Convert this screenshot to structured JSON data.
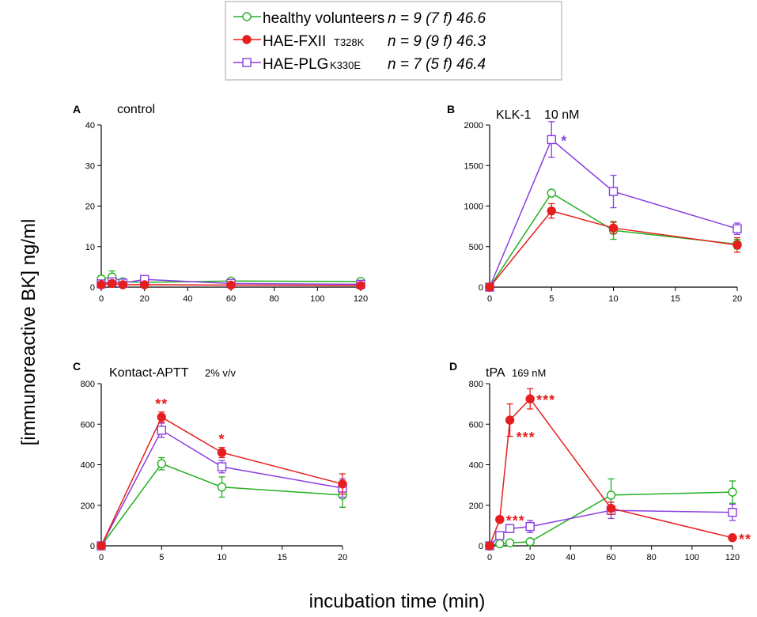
{
  "colors": {
    "healthy": "#22b020",
    "fxii": "#e61e1e",
    "plg": "#8a3fe0",
    "axis": "#000000"
  },
  "axis_titles": {
    "y": "[immunoreactive BK] ng/ml",
    "x": "incubation time (min)"
  },
  "legend": [
    {
      "key": "healthy",
      "name": "healthy volunteers",
      "variant": "",
      "stat": "n = 9 (7 f) 46.6",
      "marker": "circle-open"
    },
    {
      "key": "fxii",
      "name": "HAE-FXII",
      "variant": "T328K",
      "stat": "n = 9 (9 f) 46.3",
      "marker": "circle-filled"
    },
    {
      "key": "plg",
      "name": "HAE-PLG",
      "variant": "K330E",
      "stat": "n = 7 (5 f) 46.4",
      "marker": "square-open"
    }
  ],
  "chart_data": [
    {
      "panel": "A",
      "type": "line",
      "title": "control",
      "unit": "",
      "x_ticks": [
        0,
        20,
        40,
        60,
        80,
        100,
        120
      ],
      "y_ticks": [
        0,
        10,
        20,
        30,
        40
      ],
      "xlim": [
        0,
        120
      ],
      "ylim": [
        0,
        40
      ],
      "series": [
        {
          "key": "healthy",
          "x": [
            0,
            5,
            10,
            20,
            60,
            120
          ],
          "y": [
            2.0,
            2.5,
            1.3,
            1.2,
            1.5,
            1.4
          ],
          "err": [
            0.8,
            1.5,
            0.5,
            0.8,
            0.3,
            0.3
          ]
        },
        {
          "key": "fxii",
          "x": [
            0,
            5,
            10,
            20,
            60,
            120
          ],
          "y": [
            0.6,
            0.9,
            0.6,
            0.6,
            0.5,
            0.4
          ],
          "err": [
            0.3,
            0.3,
            0.2,
            0.2,
            0.2,
            0.2
          ]
        },
        {
          "key": "plg",
          "x": [
            0,
            5,
            10,
            20,
            60,
            120
          ],
          "y": [
            0.8,
            1.3,
            1.0,
            1.9,
            0.9,
            0.7
          ],
          "err": [
            0.3,
            0.5,
            0.4,
            0.8,
            0.4,
            0.3
          ]
        }
      ],
      "annotations": []
    },
    {
      "panel": "B",
      "type": "line",
      "title": "KLK-1",
      "unit": "10 nM",
      "x_ticks": [
        0,
        5,
        10,
        15,
        20
      ],
      "y_ticks": [
        0,
        500,
        1000,
        1500,
        2000
      ],
      "xlim": [
        0,
        20
      ],
      "ylim": [
        0,
        2000
      ],
      "series": [
        {
          "key": "healthy",
          "x": [
            0,
            5,
            10,
            20
          ],
          "y": [
            0,
            1160,
            700,
            530
          ],
          "err": [
            0,
            0,
            110,
            60
          ]
        },
        {
          "key": "fxii",
          "x": [
            0,
            5,
            10,
            20
          ],
          "y": [
            0,
            940,
            730,
            520
          ],
          "err": [
            0,
            90,
            70,
            90
          ]
        },
        {
          "key": "plg",
          "x": [
            0,
            5,
            10,
            20
          ],
          "y": [
            0,
            1820,
            1180,
            720
          ],
          "err": [
            0,
            220,
            200,
            70
          ]
        }
      ],
      "annotations": [
        {
          "text": "*",
          "series": "plg",
          "x": 5
        }
      ]
    },
    {
      "panel": "C",
      "type": "line",
      "title": "Kontact-APTT",
      "unit": "2% v/v",
      "x_ticks": [
        0,
        5,
        10,
        15,
        20
      ],
      "y_ticks": [
        0,
        200,
        400,
        600,
        800
      ],
      "xlim": [
        0,
        20
      ],
      "ylim": [
        0,
        800
      ],
      "series": [
        {
          "key": "healthy",
          "x": [
            0,
            5,
            10,
            20
          ],
          "y": [
            0,
            405,
            290,
            250
          ],
          "err": [
            0,
            30,
            50,
            60
          ]
        },
        {
          "key": "fxii",
          "x": [
            0,
            5,
            10,
            20
          ],
          "y": [
            0,
            635,
            460,
            305
          ],
          "err": [
            0,
            25,
            25,
            50
          ]
        },
        {
          "key": "plg",
          "x": [
            0,
            5,
            10,
            20
          ],
          "y": [
            0,
            570,
            390,
            285
          ],
          "err": [
            0,
            35,
            30,
            45
          ]
        }
      ],
      "annotations": [
        {
          "text": "**",
          "series": "fxii",
          "x": 5
        },
        {
          "text": "*",
          "series": "fxii",
          "x": 10
        }
      ]
    },
    {
      "panel": "D",
      "type": "line",
      "title": "tPA",
      "unit": "169 nM",
      "x_ticks": [
        0,
        20,
        40,
        60,
        80,
        100,
        120
      ],
      "y_ticks": [
        0,
        200,
        400,
        600,
        800
      ],
      "xlim": [
        0,
        120
      ],
      "ylim": [
        0,
        800
      ],
      "series": [
        {
          "key": "healthy",
          "x": [
            0,
            5,
            10,
            20,
            60,
            120
          ],
          "y": [
            0,
            10,
            15,
            20,
            250,
            265
          ],
          "err": [
            0,
            5,
            8,
            10,
            80,
            55
          ]
        },
        {
          "key": "fxii",
          "x": [
            0,
            5,
            10,
            20,
            60,
            120
          ],
          "y": [
            0,
            130,
            620,
            725,
            185,
            40
          ],
          "err": [
            0,
            15,
            80,
            50,
            30,
            5
          ]
        },
        {
          "key": "plg",
          "x": [
            0,
            5,
            10,
            20,
            60,
            120
          ],
          "y": [
            0,
            50,
            85,
            95,
            175,
            165
          ],
          "err": [
            0,
            15,
            20,
            30,
            40,
            40
          ]
        }
      ],
      "annotations": [
        {
          "text": "***",
          "series": "fxii",
          "x": 5,
          "pos": "right"
        },
        {
          "text": "***",
          "series": "fxii",
          "x": 10,
          "pos": "below-right"
        },
        {
          "text": "***",
          "series": "fxii",
          "x": 20,
          "pos": "right"
        },
        {
          "text": "**",
          "series": "fxii",
          "x": 120,
          "pos": "right"
        }
      ]
    }
  ]
}
